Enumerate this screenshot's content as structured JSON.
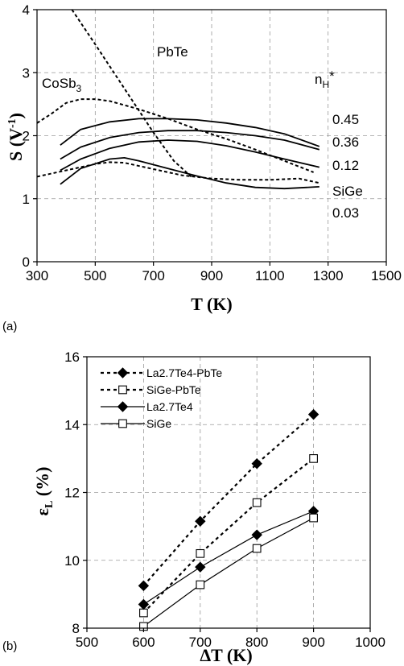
{
  "chart_data": [
    {
      "panel_label": "(a)",
      "type": "line",
      "xlabel": "T (K)",
      "ylabel": "S (V-1)",
      "xlim": [
        300,
        1500
      ],
      "ylim": [
        0,
        4
      ],
      "xticks": [
        "300",
        "500",
        "700",
        "900",
        "1100",
        "1300",
        "1500"
      ],
      "yticks": [
        "0",
        "1",
        "2",
        "3",
        "4"
      ],
      "grid": true,
      "annotations": {
        "pbte": "PbTe",
        "cosb3": "CoSb3",
        "nh_header": "nH*",
        "nh_values": [
          "0.45",
          "0.36",
          "0.12",
          "0.03"
        ],
        "sige": "SiGe"
      },
      "series": [
        {
          "style": "solid",
          "x": [
            380,
            450,
            550,
            650,
            750,
            850,
            950,
            1050,
            1150,
            1270
          ],
          "y": [
            1.85,
            2.1,
            2.22,
            2.27,
            2.27,
            2.25,
            2.2,
            2.13,
            2.03,
            1.83
          ]
        },
        {
          "style": "solid",
          "x": [
            380,
            450,
            550,
            650,
            750,
            850,
            950,
            1050,
            1150,
            1270
          ],
          "y": [
            1.63,
            1.82,
            1.97,
            2.05,
            2.08,
            2.08,
            2.05,
            2.0,
            1.93,
            1.78
          ]
        },
        {
          "style": "solid",
          "x": [
            380,
            450,
            550,
            650,
            750,
            850,
            950,
            1050,
            1150,
            1270
          ],
          "y": [
            1.45,
            1.63,
            1.8,
            1.9,
            1.93,
            1.91,
            1.84,
            1.74,
            1.63,
            1.5
          ]
        },
        {
          "style": "solid",
          "x": [
            380,
            450,
            550,
            600,
            650,
            750,
            850,
            950,
            1050,
            1150,
            1270
          ],
          "y": [
            1.23,
            1.48,
            1.63,
            1.65,
            1.6,
            1.48,
            1.36,
            1.25,
            1.18,
            1.16,
            1.19
          ]
        },
        {
          "style": "dashed",
          "x": [
            300,
            350,
            400,
            450,
            500,
            550,
            650,
            750,
            850,
            950,
            1050,
            1150,
            1250
          ],
          "y": [
            2.2,
            2.35,
            2.52,
            2.58,
            2.58,
            2.55,
            2.42,
            2.27,
            2.1,
            1.95,
            1.78,
            1.6,
            1.42
          ]
        },
        {
          "style": "dashed",
          "x": [
            420,
            500,
            600,
            700,
            770,
            830
          ],
          "y": [
            4.0,
            3.45,
            2.75,
            2.05,
            1.6,
            1.35
          ]
        },
        {
          "style": "dashed",
          "x": [
            300,
            400,
            500,
            550,
            600,
            700,
            800,
            900,
            1000,
            1100,
            1200,
            1270
          ],
          "y": [
            1.35,
            1.45,
            1.55,
            1.58,
            1.57,
            1.47,
            1.37,
            1.32,
            1.3,
            1.3,
            1.32,
            1.25
          ]
        }
      ]
    },
    {
      "panel_label": "(b)",
      "type": "line",
      "xlabel": "ΔT (K)",
      "ylabel": "εL (%)",
      "xlim": [
        500,
        1000
      ],
      "ylim": [
        8,
        16
      ],
      "xticks": [
        "500",
        "600",
        "700",
        "800",
        "900",
        "1000"
      ],
      "yticks": [
        "8",
        "10",
        "12",
        "14",
        "16"
      ],
      "grid": true,
      "legend_position": "top-left",
      "categories": [
        600,
        700,
        800,
        900
      ],
      "series": [
        {
          "name": "La2.7Te4-PbTe",
          "style": "dashed",
          "marker": "filled-diamond",
          "values": [
            9.25,
            11.15,
            12.85,
            14.3
          ]
        },
        {
          "name": "SiGe-PbTe",
          "style": "dashed",
          "marker": "open-square",
          "values": [
            8.45,
            10.2,
            11.7,
            13.0
          ]
        },
        {
          "name": "La2.7Te4",
          "style": "solid",
          "marker": "filled-diamond",
          "values": [
            8.7,
            9.8,
            10.75,
            11.45
          ]
        },
        {
          "name": "SiGe",
          "style": "solid",
          "marker": "open-square",
          "values": [
            8.05,
            9.28,
            10.35,
            11.25
          ]
        }
      ]
    }
  ]
}
